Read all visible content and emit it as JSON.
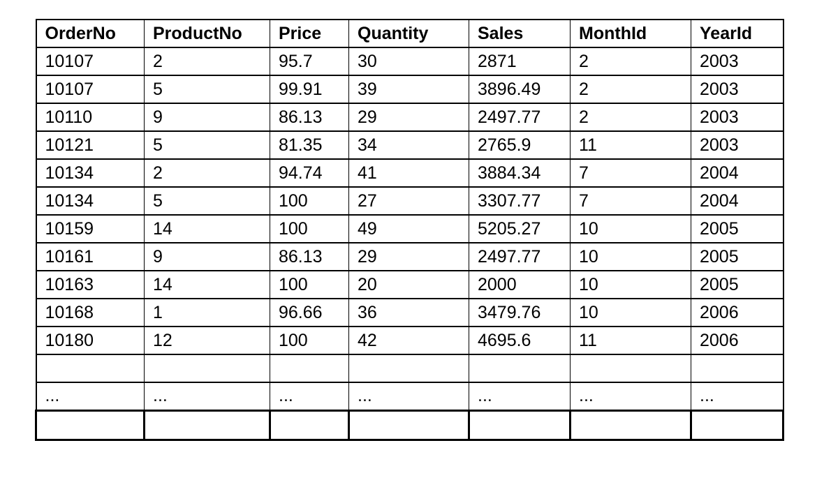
{
  "table": {
    "columns": [
      "OrderNo",
      "ProductNo",
      "Price",
      "Quantity",
      "Sales",
      "MonthId",
      "YearId"
    ],
    "rows": [
      [
        "10107",
        "2",
        "95.7",
        "30",
        "2871",
        "2",
        "2003"
      ],
      [
        "10107",
        "5",
        "99.91",
        "39",
        "3896.49",
        "2",
        "2003"
      ],
      [
        "10110",
        "9",
        "86.13",
        "29",
        "2497.77",
        "2",
        "2003"
      ],
      [
        "10121",
        "5",
        "81.35",
        "34",
        "2765.9",
        "11",
        "2003"
      ],
      [
        "10134",
        "2",
        "94.74",
        "41",
        "3884.34",
        "7",
        "2004"
      ],
      [
        "10134",
        "5",
        "100",
        "27",
        "3307.77",
        "7",
        "2004"
      ],
      [
        "10159",
        "14",
        "100",
        "49",
        "5205.27",
        "10",
        "2005"
      ],
      [
        "10161",
        "9",
        "86.13",
        "29",
        "2497.77",
        "10",
        "2005"
      ],
      [
        "10163",
        "14",
        "100",
        "20",
        "2000",
        "10",
        "2005"
      ],
      [
        "10168",
        "1",
        "96.66",
        "36",
        "3479.76",
        "10",
        "2006"
      ],
      [
        "10180",
        "12",
        "100",
        "42",
        "4695.6",
        "11",
        "2006"
      ],
      [
        "",
        "",
        "",
        "",
        "",
        "",
        ""
      ],
      [
        "...",
        "...",
        "...",
        "...",
        "...",
        "...",
        "..."
      ],
      [
        "",
        "",
        "",
        "",
        "",
        "",
        ""
      ]
    ]
  }
}
